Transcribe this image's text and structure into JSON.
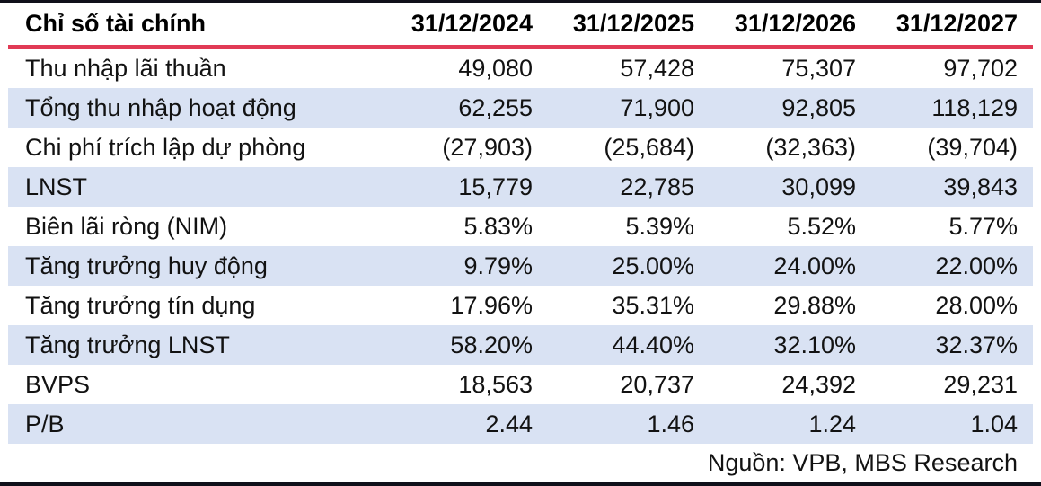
{
  "colors": {
    "accent_red": "#E13A55",
    "row_alt_bg": "#D9E2F3",
    "border_dark": "#10101A"
  },
  "table": {
    "header": {
      "label": "Chỉ số tài chính",
      "columns": [
        "31/12/2024",
        "31/12/2025",
        "31/12/2026",
        "31/12/2027"
      ]
    },
    "rows": [
      {
        "label": "Thu nhập lãi thuần",
        "values": [
          "49,080",
          "57,428",
          "75,307",
          "97,702"
        ]
      },
      {
        "label": "Tổng thu nhập hoạt động",
        "values": [
          "62,255",
          "71,900",
          "92,805",
          "118,129"
        ]
      },
      {
        "label": "Chi phí trích lập dự phòng",
        "values": [
          "(27,903)",
          "(25,684)",
          "(32,363)",
          "(39,704)"
        ]
      },
      {
        "label": "LNST",
        "values": [
          "15,779",
          "22,785",
          "30,099",
          "39,843"
        ]
      },
      {
        "label": "Biên lãi ròng (NIM)",
        "values": [
          "5.83%",
          "5.39%",
          "5.52%",
          "5.77%"
        ]
      },
      {
        "label": "Tăng trưởng huy động",
        "values": [
          "9.79%",
          "25.00%",
          "24.00%",
          "22.00%"
        ]
      },
      {
        "label": "Tăng trưởng tín dụng",
        "values": [
          "17.96%",
          "35.31%",
          "29.88%",
          "28.00%"
        ]
      },
      {
        "label": "Tăng trưởng LNST",
        "values": [
          "58.20%",
          "44.40%",
          "32.10%",
          "32.37%"
        ]
      },
      {
        "label": "BVPS",
        "values": [
          "18,563",
          "20,737",
          "24,392",
          "29,231"
        ]
      },
      {
        "label": "P/B",
        "values": [
          "2.44",
          "1.46",
          "1.24",
          "1.04"
        ]
      }
    ],
    "source": "Nguồn: VPB, MBS Research"
  }
}
